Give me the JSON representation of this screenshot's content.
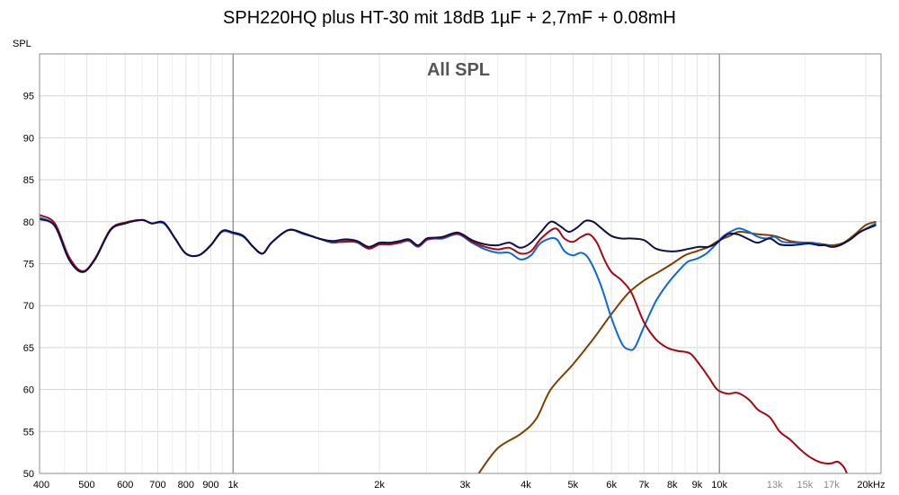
{
  "title": "SPH220HQ plus HT-30 mit 18dB 1µF + 2,7mF + 0.08mH",
  "chart_data": {
    "type": "line",
    "title": "SPH220HQ plus HT-30 mit 18dB 1µF + 2,7mF + 0.08mH",
    "subtitle": "All SPL",
    "ylabel": "SPL",
    "xlabel": "",
    "x_scale": "log",
    "xlim": [
      400,
      21500
    ],
    "ylim": [
      50,
      100
    ],
    "grid": true,
    "y_ticks": [
      {
        "value": 50,
        "label": "50"
      },
      {
        "value": 55,
        "label": "55"
      },
      {
        "value": 60,
        "label": "60"
      },
      {
        "value": 65,
        "label": "65"
      },
      {
        "value": 70,
        "label": "70"
      },
      {
        "value": 75,
        "label": "75"
      },
      {
        "value": 80,
        "label": "80"
      },
      {
        "value": 85,
        "label": "85"
      },
      {
        "value": 90,
        "label": "90"
      },
      {
        "value": 95,
        "label": "95"
      }
    ],
    "x_ticks": [
      {
        "value": 400,
        "label": "400",
        "dim": false
      },
      {
        "value": 500,
        "label": "500",
        "dim": false
      },
      {
        "value": 600,
        "label": "600",
        "dim": false
      },
      {
        "value": 700,
        "label": "700",
        "dim": false
      },
      {
        "value": 800,
        "label": "800",
        "dim": false
      },
      {
        "value": 900,
        "label": "900",
        "dim": false
      },
      {
        "value": 1000,
        "label": "1k",
        "dim": false
      },
      {
        "value": 2000,
        "label": "2k",
        "dim": false
      },
      {
        "value": 3000,
        "label": "3k",
        "dim": false
      },
      {
        "value": 4000,
        "label": "4k",
        "dim": false
      },
      {
        "value": 5000,
        "label": "5k",
        "dim": false
      },
      {
        "value": 6000,
        "label": "6k",
        "dim": false
      },
      {
        "value": 7000,
        "label": "7k",
        "dim": false
      },
      {
        "value": 8000,
        "label": "8k",
        "dim": false
      },
      {
        "value": 9000,
        "label": "9k",
        "dim": false
      },
      {
        "value": 10000,
        "label": "10k",
        "dim": false
      },
      {
        "value": 13000,
        "label": "13k",
        "dim": true
      },
      {
        "value": 15000,
        "label": "15k",
        "dim": true
      },
      {
        "value": 17000,
        "label": "17k",
        "dim": true
      },
      {
        "value": 20000,
        "label": "20kHz",
        "dim": false
      }
    ],
    "series": [
      {
        "color": "#7f3f00",
        "points": [
          [
            3200,
            50
          ],
          [
            3500,
            53
          ],
          [
            3900,
            54.7
          ],
          [
            4200,
            56.5
          ],
          [
            4500,
            60
          ],
          [
            5000,
            63
          ],
          [
            5500,
            66
          ],
          [
            6000,
            69
          ],
          [
            6500,
            71.5
          ],
          [
            7000,
            73
          ],
          [
            7500,
            74
          ],
          [
            8000,
            75
          ],
          [
            8500,
            76
          ],
          [
            9000,
            76.5
          ],
          [
            9500,
            77
          ],
          [
            10000,
            77.8
          ],
          [
            10500,
            78.3
          ],
          [
            11000,
            78.8
          ],
          [
            12000,
            78.5
          ],
          [
            13000,
            78.3
          ],
          [
            14000,
            77.7
          ],
          [
            15000,
            77.5
          ],
          [
            16000,
            77.4
          ],
          [
            17000,
            77.2
          ],
          [
            18000,
            77.5
          ],
          [
            19000,
            78.5
          ],
          [
            20000,
            79.6
          ],
          [
            21000,
            80
          ]
        ]
      },
      {
        "color": "#0b6ad8",
        "points": [
          [
            400,
            80.5
          ],
          [
            430,
            79.5
          ],
          [
            460,
            75.5
          ],
          [
            490,
            74
          ],
          [
            520,
            75.5
          ],
          [
            560,
            79
          ],
          [
            600,
            79.8
          ],
          [
            650,
            80.2
          ],
          [
            680,
            79.8
          ],
          [
            720,
            79.8
          ],
          [
            760,
            78
          ],
          [
            800,
            76.2
          ],
          [
            850,
            76
          ],
          [
            900,
            77.2
          ],
          [
            950,
            78.8
          ],
          [
            1000,
            78.6
          ],
          [
            1050,
            78.2
          ],
          [
            1100,
            77
          ],
          [
            1150,
            76.2
          ],
          [
            1200,
            77.5
          ],
          [
            1300,
            79
          ],
          [
            1400,
            78.5
          ],
          [
            1500,
            78
          ],
          [
            1600,
            77.5
          ],
          [
            1700,
            77.7
          ],
          [
            1800,
            77.5
          ],
          [
            1900,
            76.8
          ],
          [
            2000,
            77.3
          ],
          [
            2100,
            77.3
          ],
          [
            2200,
            77.5
          ],
          [
            2300,
            77.7
          ],
          [
            2400,
            77
          ],
          [
            2500,
            77.8
          ],
          [
            2600,
            78
          ],
          [
            2700,
            78
          ],
          [
            2900,
            78.5
          ],
          [
            3100,
            77.5
          ],
          [
            3300,
            76.7
          ],
          [
            3500,
            76.3
          ],
          [
            3700,
            76.3
          ],
          [
            3900,
            75.5
          ],
          [
            4100,
            76
          ],
          [
            4300,
            77.5
          ],
          [
            4600,
            78
          ],
          [
            4800,
            76.5
          ],
          [
            5000,
            76
          ],
          [
            5200,
            76.3
          ],
          [
            5400,
            75.5
          ],
          [
            5700,
            72.5
          ],
          [
            6000,
            68.5
          ],
          [
            6300,
            65.5
          ],
          [
            6500,
            64.8
          ],
          [
            6700,
            65
          ],
          [
            7000,
            67.5
          ],
          [
            7400,
            70.5
          ],
          [
            7800,
            72.5
          ],
          [
            8200,
            74
          ],
          [
            8600,
            75.2
          ],
          [
            9000,
            75.6
          ],
          [
            9400,
            76.2
          ],
          [
            9800,
            77.2
          ],
          [
            10200,
            78.3
          ],
          [
            10700,
            79
          ],
          [
            11000,
            79.2
          ],
          [
            11500,
            78.8
          ],
          [
            12000,
            78.2
          ],
          [
            12500,
            78
          ],
          [
            13000,
            78.2
          ],
          [
            13500,
            77.6
          ],
          [
            14500,
            77.5
          ],
          [
            15500,
            77.5
          ],
          [
            16500,
            77.2
          ],
          [
            17500,
            77.1
          ],
          [
            18500,
            77.8
          ],
          [
            19500,
            78.8
          ],
          [
            21000,
            79.8
          ]
        ]
      },
      {
        "color": "#a30b12",
        "points": [
          [
            400,
            80.8
          ],
          [
            430,
            79.8
          ],
          [
            460,
            75.8
          ],
          [
            490,
            74.1
          ],
          [
            520,
            75.6
          ],
          [
            560,
            79.1
          ],
          [
            600,
            79.9
          ],
          [
            650,
            80.2
          ],
          [
            680,
            79.8
          ],
          [
            720,
            79.9
          ],
          [
            760,
            78
          ],
          [
            800,
            76.2
          ],
          [
            850,
            76
          ],
          [
            900,
            77.2
          ],
          [
            950,
            78.9
          ],
          [
            1000,
            78.7
          ],
          [
            1050,
            78.3
          ],
          [
            1100,
            77
          ],
          [
            1150,
            76.2
          ],
          [
            1200,
            77.5
          ],
          [
            1300,
            79
          ],
          [
            1400,
            78.6
          ],
          [
            1500,
            78
          ],
          [
            1600,
            77.6
          ],
          [
            1700,
            77.6
          ],
          [
            1800,
            77.6
          ],
          [
            1900,
            76.8
          ],
          [
            2000,
            77.3
          ],
          [
            2100,
            77.3
          ],
          [
            2200,
            77.5
          ],
          [
            2300,
            77.8
          ],
          [
            2400,
            77.1
          ],
          [
            2500,
            77.9
          ],
          [
            2600,
            78
          ],
          [
            2700,
            78.1
          ],
          [
            2900,
            78.6
          ],
          [
            3100,
            77.6
          ],
          [
            3300,
            77
          ],
          [
            3500,
            76.7
          ],
          [
            3700,
            76.9
          ],
          [
            3900,
            76.2
          ],
          [
            4100,
            76.5
          ],
          [
            4300,
            78
          ],
          [
            4600,
            79.2
          ],
          [
            4800,
            78
          ],
          [
            5000,
            77.6
          ],
          [
            5200,
            78.2
          ],
          [
            5400,
            78.5
          ],
          [
            5600,
            77.5
          ],
          [
            5800,
            75.5
          ],
          [
            6000,
            74
          ],
          [
            6300,
            73
          ],
          [
            6600,
            71.5
          ],
          [
            7000,
            68
          ],
          [
            7400,
            66
          ],
          [
            7800,
            65
          ],
          [
            8200,
            64.6
          ],
          [
            8700,
            64.3
          ],
          [
            9100,
            63
          ],
          [
            9500,
            61.5
          ],
          [
            9900,
            60
          ],
          [
            10400,
            59.5
          ],
          [
            10900,
            59.6
          ],
          [
            11500,
            58.8
          ],
          [
            12000,
            57.6
          ],
          [
            12700,
            56.7
          ],
          [
            13300,
            55
          ],
          [
            14000,
            54
          ],
          [
            14700,
            52.8
          ],
          [
            15300,
            52
          ],
          [
            16000,
            51.4
          ],
          [
            16500,
            51.2
          ],
          [
            17000,
            51.2
          ],
          [
            17500,
            51.4
          ],
          [
            18000,
            50.8
          ],
          [
            18300,
            50
          ]
        ]
      },
      {
        "color": "#101048",
        "points": [
          [
            400,
            80.3
          ],
          [
            430,
            79.5
          ],
          [
            460,
            75.5
          ],
          [
            490,
            74
          ],
          [
            520,
            75.5
          ],
          [
            560,
            79
          ],
          [
            600,
            79.8
          ],
          [
            650,
            80.2
          ],
          [
            680,
            79.8
          ],
          [
            720,
            79.9
          ],
          [
            760,
            78
          ],
          [
            800,
            76.2
          ],
          [
            850,
            76
          ],
          [
            900,
            77.2
          ],
          [
            950,
            78.9
          ],
          [
            1000,
            78.7
          ],
          [
            1050,
            78.3
          ],
          [
            1100,
            77
          ],
          [
            1150,
            76.2
          ],
          [
            1200,
            77.5
          ],
          [
            1300,
            79
          ],
          [
            1400,
            78.6
          ],
          [
            1500,
            78
          ],
          [
            1600,
            77.7
          ],
          [
            1700,
            77.9
          ],
          [
            1800,
            77.7
          ],
          [
            1900,
            77
          ],
          [
            2000,
            77.5
          ],
          [
            2100,
            77.5
          ],
          [
            2200,
            77.7
          ],
          [
            2300,
            77.9
          ],
          [
            2400,
            77.2
          ],
          [
            2500,
            78
          ],
          [
            2600,
            78.1
          ],
          [
            2700,
            78.2
          ],
          [
            2900,
            78.7
          ],
          [
            3100,
            77.8
          ],
          [
            3300,
            77.3
          ],
          [
            3500,
            77.2
          ],
          [
            3700,
            77.5
          ],
          [
            3900,
            76.9
          ],
          [
            4100,
            77.5
          ],
          [
            4300,
            78.8
          ],
          [
            4500,
            80
          ],
          [
            4700,
            79.5
          ],
          [
            4900,
            78.8
          ],
          [
            5100,
            79.3
          ],
          [
            5300,
            80.1
          ],
          [
            5500,
            80
          ],
          [
            5700,
            79.3
          ],
          [
            6000,
            78.3
          ],
          [
            6300,
            78
          ],
          [
            6600,
            78
          ],
          [
            7000,
            77.8
          ],
          [
            7400,
            76.8
          ],
          [
            7800,
            76.5
          ],
          [
            8200,
            76.5
          ],
          [
            8700,
            76.8
          ],
          [
            9100,
            77
          ],
          [
            9500,
            77
          ],
          [
            9900,
            77.5
          ],
          [
            10400,
            78.5
          ],
          [
            10900,
            78.5
          ],
          [
            11500,
            77.9
          ],
          [
            12000,
            77.5
          ],
          [
            12700,
            78
          ],
          [
            13300,
            77.3
          ],
          [
            14000,
            77.2
          ],
          [
            14700,
            77.3
          ],
          [
            15300,
            77.4
          ],
          [
            16000,
            77.2
          ],
          [
            16500,
            77.2
          ],
          [
            17000,
            77
          ],
          [
            17500,
            77.1
          ],
          [
            18500,
            77.8
          ],
          [
            19500,
            78.8
          ],
          [
            21000,
            79.6
          ]
        ]
      }
    ]
  }
}
